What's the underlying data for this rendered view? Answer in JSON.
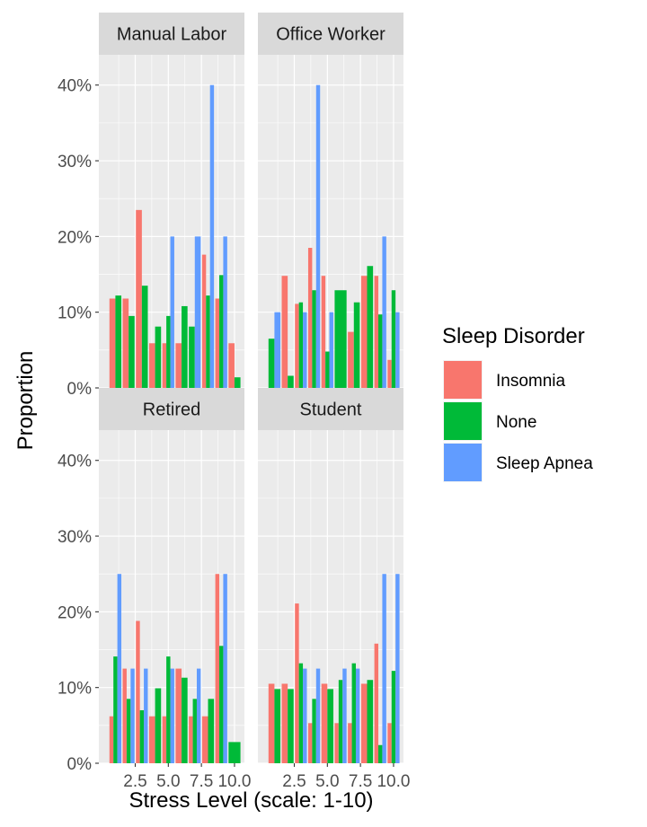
{
  "chart_data": {
    "type": "bar",
    "xlabel": "Stress Level (scale: 1-10)",
    "ylabel": "Proportion",
    "x_ticks": [
      2.5,
      5.0,
      7.5,
      10.0
    ],
    "x_tick_labels": [
      "2.5",
      "5.0",
      "7.5",
      "10.0"
    ],
    "xlim": [
      -0.25,
      10.75
    ],
    "ylim": [
      0,
      0.44
    ],
    "y_ticks": [
      0,
      0.1,
      0.2,
      0.3,
      0.4
    ],
    "y_tick_labels": [
      "0%",
      "10%",
      "20%",
      "30%",
      "40%"
    ],
    "legend": {
      "title": "Sleep Disorder",
      "position": "right",
      "entries": [
        {
          "name": "Insomnia",
          "color": "#F8766D"
        },
        {
          "name": "None",
          "color": "#00BA38"
        },
        {
          "name": "Sleep Apnea",
          "color": "#619CFF"
        }
      ]
    },
    "panels": [
      {
        "title": "Manual Labor",
        "bars": [
          {
            "x": 1,
            "series": [
              {
                "name": "Insomnia",
                "value": 0.118
              },
              {
                "name": "None",
                "value": 0.122
              }
            ]
          },
          {
            "x": 2,
            "series": [
              {
                "name": "Insomnia",
                "value": 0.118
              },
              {
                "name": "None",
                "value": 0.095
              }
            ]
          },
          {
            "x": 3,
            "series": [
              {
                "name": "Insomnia",
                "value": 0.235
              },
              {
                "name": "None",
                "value": 0.135
              }
            ]
          },
          {
            "x": 4,
            "series": [
              {
                "name": "Insomnia",
                "value": 0.059
              },
              {
                "name": "None",
                "value": 0.081
              }
            ]
          },
          {
            "x": 5,
            "series": [
              {
                "name": "Insomnia",
                "value": 0.059
              },
              {
                "name": "None",
                "value": 0.095
              },
              {
                "name": "Sleep Apnea",
                "value": 0.2
              }
            ]
          },
          {
            "x": 6,
            "series": [
              {
                "name": "Insomnia",
                "value": 0.059
              },
              {
                "name": "None",
                "value": 0.108
              }
            ]
          },
          {
            "x": 7,
            "series": [
              {
                "name": "None",
                "value": 0.081
              },
              {
                "name": "Sleep Apnea",
                "value": 0.2
              }
            ]
          },
          {
            "x": 8,
            "series": [
              {
                "name": "Insomnia",
                "value": 0.176
              },
              {
                "name": "None",
                "value": 0.122
              },
              {
                "name": "Sleep Apnea",
                "value": 0.4
              }
            ]
          },
          {
            "x": 9,
            "series": [
              {
                "name": "Insomnia",
                "value": 0.118
              },
              {
                "name": "None",
                "value": 0.149
              },
              {
                "name": "Sleep Apnea",
                "value": 0.2
              }
            ]
          },
          {
            "x": 10,
            "series": [
              {
                "name": "Insomnia",
                "value": 0.059
              },
              {
                "name": "None",
                "value": 0.014
              }
            ]
          }
        ]
      },
      {
        "title": "Office Worker",
        "bars": [
          {
            "x": 1,
            "series": [
              {
                "name": "None",
                "value": 0.065
              },
              {
                "name": "Sleep Apnea",
                "value": 0.1
              }
            ]
          },
          {
            "x": 2,
            "series": [
              {
                "name": "Insomnia",
                "value": 0.148
              },
              {
                "name": "None",
                "value": 0.016
              }
            ]
          },
          {
            "x": 3,
            "series": [
              {
                "name": "Insomnia",
                "value": 0.111
              },
              {
                "name": "None",
                "value": 0.113
              },
              {
                "name": "Sleep Apnea",
                "value": 0.1
              }
            ]
          },
          {
            "x": 4,
            "series": [
              {
                "name": "Insomnia",
                "value": 0.185
              },
              {
                "name": "None",
                "value": 0.129
              },
              {
                "name": "Sleep Apnea",
                "value": 0.4
              }
            ]
          },
          {
            "x": 5,
            "series": [
              {
                "name": "Insomnia",
                "value": 0.148
              },
              {
                "name": "None",
                "value": 0.048
              },
              {
                "name": "Sleep Apnea",
                "value": 0.1
              }
            ]
          },
          {
            "x": 6,
            "series": [
              {
                "name": "None",
                "value": 0.129
              }
            ]
          },
          {
            "x": 7,
            "series": [
              {
                "name": "Insomnia",
                "value": 0.074
              },
              {
                "name": "None",
                "value": 0.113
              }
            ]
          },
          {
            "x": 8,
            "series": [
              {
                "name": "Insomnia",
                "value": 0.148
              },
              {
                "name": "None",
                "value": 0.161
              }
            ]
          },
          {
            "x": 9,
            "series": [
              {
                "name": "Insomnia",
                "value": 0.148
              },
              {
                "name": "None",
                "value": 0.097
              },
              {
                "name": "Sleep Apnea",
                "value": 0.2
              }
            ]
          },
          {
            "x": 10,
            "series": [
              {
                "name": "Insomnia",
                "value": 0.037
              },
              {
                "name": "None",
                "value": 0.129
              },
              {
                "name": "Sleep Apnea",
                "value": 0.1
              }
            ]
          }
        ]
      },
      {
        "title": "Retired",
        "bars": [
          {
            "x": 1,
            "series": [
              {
                "name": "Insomnia",
                "value": 0.062
              },
              {
                "name": "None",
                "value": 0.141
              },
              {
                "name": "Sleep Apnea",
                "value": 0.25
              }
            ]
          },
          {
            "x": 2,
            "series": [
              {
                "name": "Insomnia",
                "value": 0.125
              },
              {
                "name": "None",
                "value": 0.085
              },
              {
                "name": "Sleep Apnea",
                "value": 0.125
              }
            ]
          },
          {
            "x": 3,
            "series": [
              {
                "name": "Insomnia",
                "value": 0.188
              },
              {
                "name": "None",
                "value": 0.07
              },
              {
                "name": "Sleep Apnea",
                "value": 0.125
              }
            ]
          },
          {
            "x": 4,
            "series": [
              {
                "name": "Insomnia",
                "value": 0.062
              },
              {
                "name": "None",
                "value": 0.099
              }
            ]
          },
          {
            "x": 5,
            "series": [
              {
                "name": "Insomnia",
                "value": 0.062
              },
              {
                "name": "None",
                "value": 0.141
              },
              {
                "name": "Sleep Apnea",
                "value": 0.125
              }
            ]
          },
          {
            "x": 6,
            "series": [
              {
                "name": "Insomnia",
                "value": 0.125
              },
              {
                "name": "None",
                "value": 0.113
              }
            ]
          },
          {
            "x": 7,
            "series": [
              {
                "name": "Insomnia",
                "value": 0.062
              },
              {
                "name": "None",
                "value": 0.085
              },
              {
                "name": "Sleep Apnea",
                "value": 0.125
              }
            ]
          },
          {
            "x": 8,
            "series": [
              {
                "name": "Insomnia",
                "value": 0.062
              },
              {
                "name": "None",
                "value": 0.085
              }
            ]
          },
          {
            "x": 9,
            "series": [
              {
                "name": "Insomnia",
                "value": 0.25
              },
              {
                "name": "None",
                "value": 0.155
              },
              {
                "name": "Sleep Apnea",
                "value": 0.25
              }
            ]
          },
          {
            "x": 10,
            "series": [
              {
                "name": "None",
                "value": 0.028
              }
            ]
          }
        ]
      },
      {
        "title": "Student",
        "bars": [
          {
            "x": 1,
            "series": [
              {
                "name": "Insomnia",
                "value": 0.105
              },
              {
                "name": "None",
                "value": 0.098
              }
            ]
          },
          {
            "x": 2,
            "series": [
              {
                "name": "Insomnia",
                "value": 0.105
              },
              {
                "name": "None",
                "value": 0.098
              }
            ]
          },
          {
            "x": 3,
            "series": [
              {
                "name": "Insomnia",
                "value": 0.211
              },
              {
                "name": "None",
                "value": 0.132
              },
              {
                "name": "Sleep Apnea",
                "value": 0.125
              }
            ]
          },
          {
            "x": 4,
            "series": [
              {
                "name": "Insomnia",
                "value": 0.053
              },
              {
                "name": "None",
                "value": 0.085
              },
              {
                "name": "Sleep Apnea",
                "value": 0.125
              }
            ]
          },
          {
            "x": 5,
            "series": [
              {
                "name": "Insomnia",
                "value": 0.105
              },
              {
                "name": "None",
                "value": 0.098
              }
            ]
          },
          {
            "x": 6,
            "series": [
              {
                "name": "Insomnia",
                "value": 0.053
              },
              {
                "name": "None",
                "value": 0.11
              },
              {
                "name": "Sleep Apnea",
                "value": 0.125
              }
            ]
          },
          {
            "x": 7,
            "series": [
              {
                "name": "Insomnia",
                "value": 0.053
              },
              {
                "name": "None",
                "value": 0.132
              },
              {
                "name": "Sleep Apnea",
                "value": 0.125
              }
            ]
          },
          {
            "x": 8,
            "series": [
              {
                "name": "Insomnia",
                "value": 0.105
              },
              {
                "name": "None",
                "value": 0.11
              }
            ]
          },
          {
            "x": 9,
            "series": [
              {
                "name": "Insomnia",
                "value": 0.158
              },
              {
                "name": "None",
                "value": 0.024
              },
              {
                "name": "Sleep Apnea",
                "value": 0.25
              }
            ]
          },
          {
            "x": 10,
            "series": [
              {
                "name": "Insomnia",
                "value": 0.053
              },
              {
                "name": "None",
                "value": 0.122
              },
              {
                "name": "Sleep Apnea",
                "value": 0.25
              }
            ]
          }
        ]
      }
    ]
  }
}
